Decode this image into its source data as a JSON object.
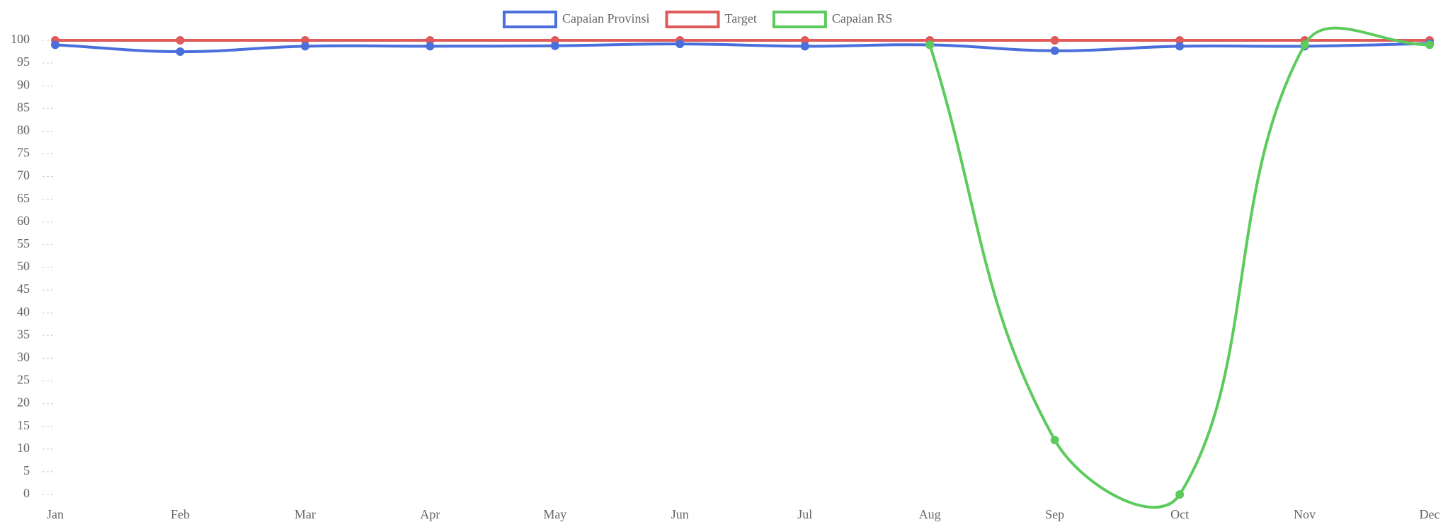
{
  "chart_data": {
    "type": "line",
    "categories": [
      "Jan",
      "Feb",
      "Mar",
      "Apr",
      "May",
      "Jun",
      "Jul",
      "Aug",
      "Sep",
      "Oct",
      "Nov",
      "Dec"
    ],
    "series": [
      {
        "name": "Capaian Provinsi",
        "color": "#4a6fdc",
        "values": [
          99,
          97.5,
          98.7,
          98.7,
          98.8,
          99.2,
          98.7,
          99,
          97.7,
          98.7,
          98.7,
          99.3
        ]
      },
      {
        "name": "Target",
        "color": "#e05a5a",
        "values": [
          100,
          100,
          100,
          100,
          100,
          100,
          100,
          100,
          100,
          100,
          100,
          100
        ]
      },
      {
        "name": "Capaian RS",
        "color": "#5ccb5c",
        "values": [
          null,
          null,
          null,
          null,
          null,
          null,
          null,
          99,
          12,
          0,
          99,
          99
        ]
      }
    ],
    "ylim": [
      0,
      100
    ],
    "yticks": [
      0,
      5,
      10,
      15,
      20,
      25,
      30,
      35,
      40,
      45,
      50,
      55,
      60,
      65,
      70,
      75,
      80,
      85,
      90,
      95,
      100
    ]
  }
}
